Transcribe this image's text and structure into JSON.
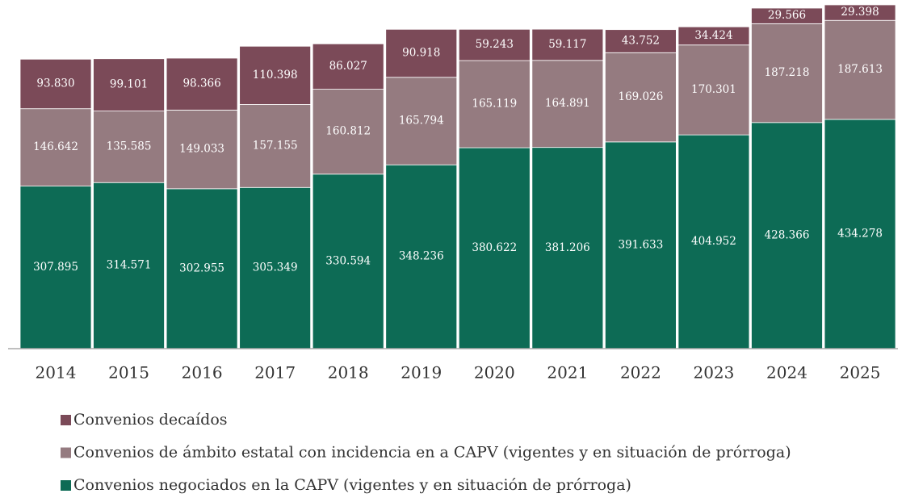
{
  "chart_data": {
    "type": "stacked_bar",
    "categories": [
      "2014",
      "2015",
      "2016",
      "2017",
      "2018",
      "2019",
      "2020",
      "2021",
      "2022",
      "2023",
      "2024",
      "2025"
    ],
    "series": [
      {
        "name": "Convenios negociados en la CAPV (vigentes y en situación de prórroga)",
        "color": "#0d6b55",
        "values": [
          307895,
          314571,
          302955,
          305349,
          330594,
          348236,
          380622,
          381206,
          391633,
          404952,
          428366,
          434278
        ],
        "value_labels": [
          "307.895",
          "314.571",
          "302.955",
          "305.349",
          "330.594",
          "348.236",
          "380.622",
          "381.206",
          "391.633",
          "404.952",
          "428.366",
          "434.278"
        ]
      },
      {
        "name": "Convenios de ámbito estatal con incidencia en a CAPV (vigentes y en situación de prórroga)",
        "color": "#957b80",
        "values": [
          146642,
          135585,
          149033,
          157155,
          160812,
          165794,
          165119,
          164891,
          169026,
          170301,
          187218,
          187613
        ],
        "value_labels": [
          "146.642",
          "135.585",
          "149.033",
          "157.155",
          "160.812",
          "165.794",
          "165.119",
          "164.891",
          "169.026",
          "170.301",
          "187.218",
          "187.613"
        ]
      },
      {
        "name": "Convenios decaídos",
        "color": "#7b4a58",
        "values": [
          93830,
          99101,
          98366,
          110398,
          86027,
          90918,
          59243,
          59117,
          43752,
          34424,
          29566,
          29398
        ],
        "value_labels": [
          "93.830",
          "99.101",
          "98.366",
          "110.398",
          "86.027",
          "90.918",
          "59.243",
          "59.117",
          "43.752",
          "34.424",
          "29.566",
          "29.398"
        ]
      }
    ]
  }
}
